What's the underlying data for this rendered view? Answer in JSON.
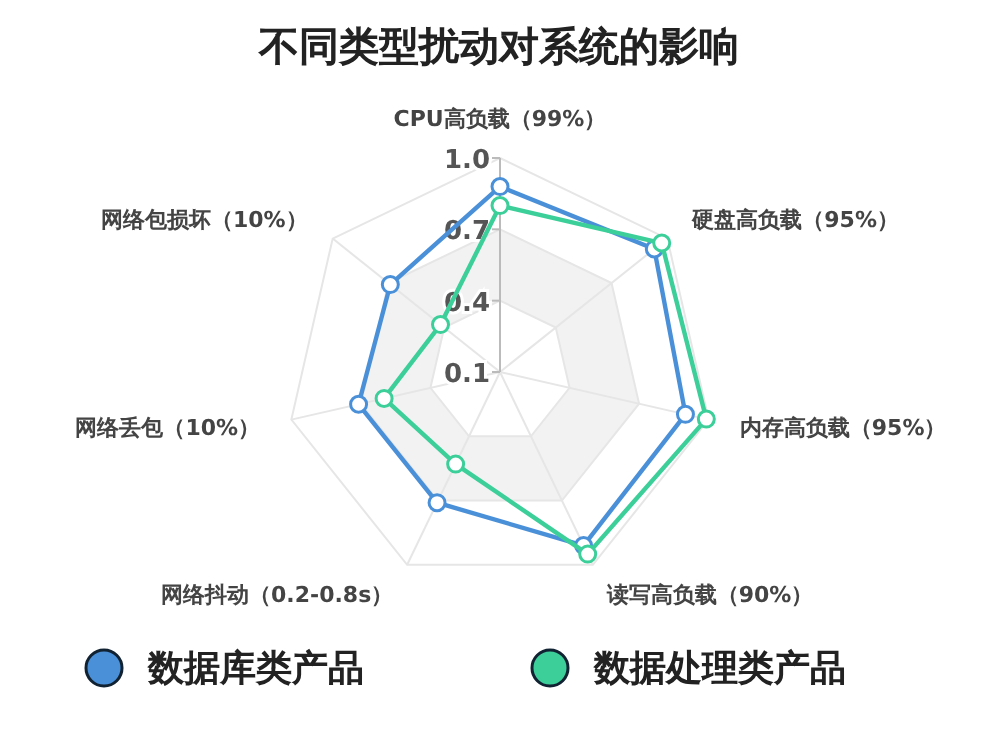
{
  "chart_data": {
    "type": "radar",
    "title": "不同类型扰动对系统的影响",
    "categories": [
      "CPU高负载（99%）",
      "硬盘高负载（95%）",
      "内存高负载（95%）",
      "读写高负载（90%）",
      "网络抖动（0.2-0.8s）",
      "网络丢包（10%）",
      "网络包损坏（10%）"
    ],
    "series": [
      {
        "name": "数据库类产品",
        "color": "#4a90d9",
        "values": [
          0.88,
          0.93,
          0.9,
          0.91,
          0.71,
          0.71,
          0.69
        ]
      },
      {
        "name": "数据处理类产品",
        "color": "#3ccf9a",
        "values": [
          0.8,
          0.97,
          0.99,
          0.95,
          0.53,
          0.6,
          0.42
        ]
      }
    ],
    "ylim": [
      0.1,
      1.0
    ],
    "yticks": [
      0.1,
      0.4,
      0.7,
      {
        "value": 1.0,
        "label": "1.0"
      }
    ],
    "grid": true,
    "legend": "bottom",
    "marker": "circle",
    "line_style": "solid"
  }
}
